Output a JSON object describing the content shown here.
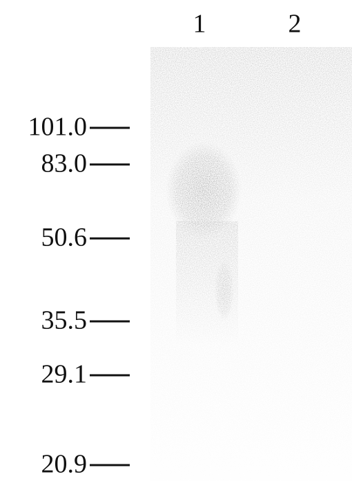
{
  "lanes": [
    "1",
    "2"
  ],
  "markers": [
    "101.0",
    "83.0",
    "50.6",
    "35.5",
    "29.1",
    "20.9"
  ]
}
